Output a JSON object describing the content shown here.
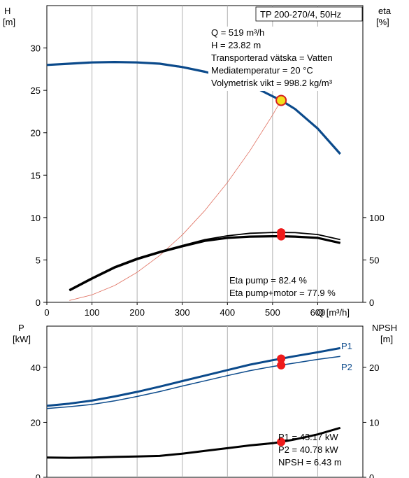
{
  "chart_data": [
    {
      "type": "line",
      "name": "head-efficiency",
      "pump_label": "TP 200-270/4, 50Hz",
      "info_lines": [
        "Q = 519 m³/h",
        "H = 23.82 m",
        "Transporterad vätska = Vatten",
        "Mediatemperatur = 20 °C",
        "Volymetrisk vikt = 998.2 kg/m³"
      ],
      "eta_lines": [
        "Eta pump = 82.4 %",
        "Eta pump+motor = 77.9 %"
      ],
      "xlabel": "Q [m³/h]",
      "xlim": [
        0,
        700
      ],
      "x_ticks": [
        0,
        100,
        200,
        300,
        400,
        500,
        600
      ],
      "ylabel_left": "H",
      "ylabel_left_unit": "[m]",
      "ylim_left": [
        0,
        35
      ],
      "y_ticks_left": [
        0,
        5,
        10,
        15,
        20,
        25,
        30
      ],
      "ylabel_right": "eta",
      "ylabel_right_unit": "[%]",
      "y_ticks_right": [
        0,
        50,
        100
      ],
      "grid": "vertical",
      "series": [
        {
          "role": "head",
          "axis": "H",
          "color": "#0b4a8b",
          "x": [
            0,
            50,
            100,
            150,
            200,
            250,
            300,
            350,
            400,
            450,
            500,
            519,
            550,
            600,
            650
          ],
          "y": [
            28.0,
            28.15,
            28.3,
            28.35,
            28.3,
            28.15,
            27.75,
            27.2,
            26.5,
            25.65,
            24.3,
            23.82,
            22.8,
            20.5,
            17.5
          ]
        },
        {
          "role": "system-curve",
          "axis": "H",
          "color": "#e07060",
          "x": [
            50,
            100,
            150,
            200,
            250,
            300,
            350,
            400,
            450,
            500,
            519
          ],
          "y": [
            0.22,
            0.88,
            1.98,
            3.54,
            5.52,
            7.95,
            10.83,
            14.14,
            17.9,
            22.1,
            23.82
          ]
        },
        {
          "role": "eta-pump",
          "axis": "eta",
          "color": "#000000",
          "x": [
            50,
            100,
            150,
            200,
            250,
            300,
            350,
            400,
            450,
            500,
            519,
            550,
            600,
            650
          ],
          "y": [
            15,
            29,
            42,
            52,
            60,
            67,
            74,
            78.5,
            81.5,
            82.4,
            82.4,
            82.2,
            80,
            74
          ]
        },
        {
          "role": "eta-pump-motor",
          "axis": "eta",
          "color": "#000000",
          "x": [
            50,
            100,
            150,
            200,
            250,
            300,
            350,
            400,
            450,
            500,
            519,
            550,
            600,
            650
          ],
          "y": [
            14,
            28,
            41,
            51,
            59,
            66,
            72.5,
            76,
            77.5,
            77.9,
            77.9,
            77.5,
            76,
            70
          ]
        }
      ],
      "operating_point": {
        "q": 519,
        "h": 23.82,
        "eta_pump": 82.4,
        "eta_pump_motor": 77.9
      }
    },
    {
      "type": "line",
      "name": "power-npsh",
      "xlim": [
        0,
        700
      ],
      "ylabel_left": "P",
      "ylabel_left_unit": "[kW]",
      "ylim_left": [
        0,
        55
      ],
      "y_ticks_left": [
        0,
        20,
        40
      ],
      "ylabel_right": "NPSH",
      "ylabel_right_unit": "[m]",
      "ylim_right": [
        0,
        27.5
      ],
      "y_ticks_right": [
        0,
        10,
        20
      ],
      "grid": "vertical",
      "power_lines": [
        "P1 = 43.17 kW",
        "P2 = 40.78 kW",
        "NPSH = 6.43 m"
      ],
      "series": [
        {
          "name": "P1",
          "axis": "P",
          "color": "#0b4a8b",
          "x": [
            0,
            50,
            100,
            150,
            200,
            250,
            300,
            350,
            400,
            450,
            500,
            519,
            550,
            600,
            650
          ],
          "y": [
            26.0,
            26.8,
            27.9,
            29.4,
            31.1,
            33.0,
            35.0,
            37.0,
            39.0,
            41.0,
            42.6,
            43.17,
            44.1,
            45.5,
            47.0
          ]
        },
        {
          "name": "P2",
          "axis": "P",
          "color": "#0b4a8b",
          "x": [
            0,
            50,
            100,
            150,
            200,
            250,
            300,
            350,
            400,
            450,
            500,
            519,
            550,
            600,
            650
          ],
          "y": [
            25.0,
            25.7,
            26.5,
            27.8,
            29.4,
            31.2,
            33.2,
            35.1,
            37.0,
            38.8,
            40.3,
            40.78,
            41.6,
            42.9,
            44.0
          ]
        },
        {
          "role": "npsh",
          "axis": "NPSH",
          "color": "#000000",
          "x": [
            0,
            50,
            100,
            150,
            200,
            250,
            300,
            350,
            400,
            450,
            500,
            519,
            550,
            600,
            650
          ],
          "y": [
            3.6,
            3.55,
            3.6,
            3.7,
            3.8,
            3.9,
            4.3,
            4.8,
            5.3,
            5.8,
            6.2,
            6.43,
            6.9,
            7.8,
            9.0
          ]
        }
      ],
      "operating_point": {
        "q": 519,
        "p1": 43.17,
        "p2": 40.78,
        "npsh": 6.43
      }
    }
  ]
}
